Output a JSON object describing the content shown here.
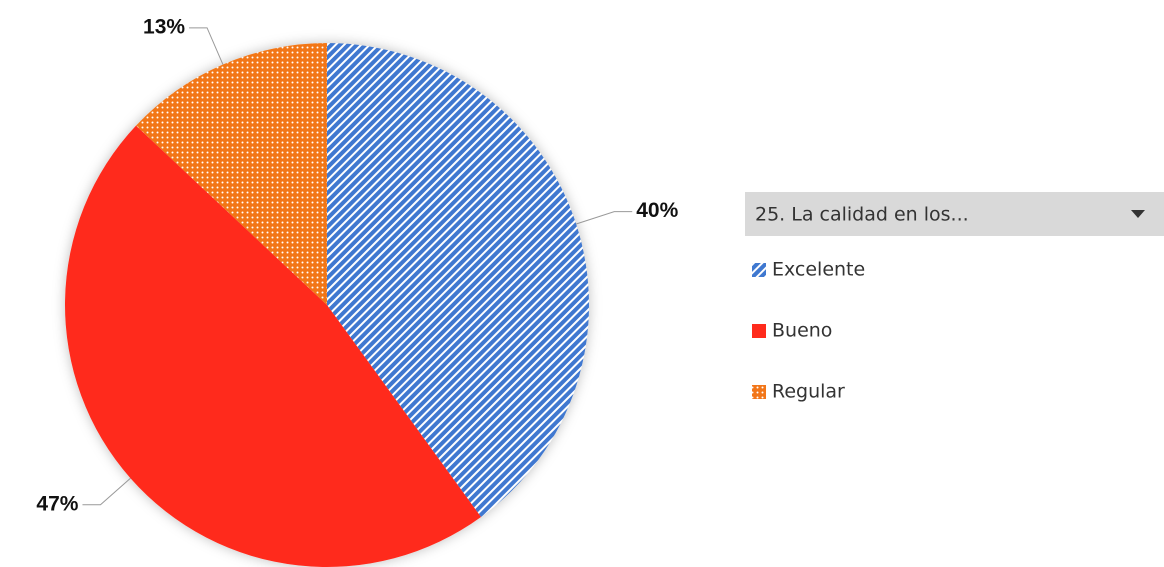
{
  "chart_data": {
    "type": "pie",
    "legend_title": "25. La calidad en los...",
    "categories": [
      "Excelente",
      "Bueno",
      "Regular"
    ],
    "values": [
      40,
      47,
      13
    ],
    "value_labels": [
      "40%",
      "47%",
      "13%"
    ],
    "colors": [
      "#3f78d0",
      "#ff2b1c",
      "#f27619"
    ],
    "patterns": [
      "stripes",
      "solid",
      "dots"
    ],
    "legend": "right"
  }
}
